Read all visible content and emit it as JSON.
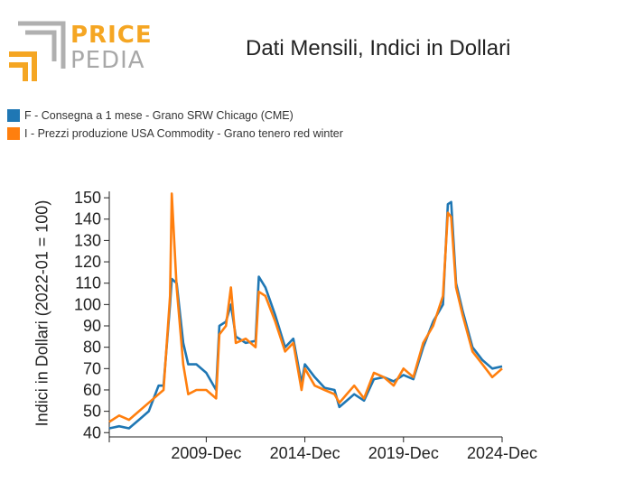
{
  "logo": {
    "word1": "PRICE",
    "word2": "PEDIA",
    "colors": {
      "orange": "#f5a623",
      "gray": "#b0b0b0"
    }
  },
  "chart_data": {
    "type": "line",
    "title": "Dati Mensili, Indici in Dollari",
    "ylabel": "Indici in Dollari (2022-01 = 100)",
    "xlabel": "",
    "ylim": [
      38,
      153
    ],
    "yticks": [
      40,
      50,
      60,
      70,
      80,
      90,
      100,
      110,
      120,
      130,
      140,
      150
    ],
    "xlim": [
      "2005-01",
      "2024-12"
    ],
    "xticks": [
      "2009-Dec",
      "2014-Dec",
      "2019-Dec",
      "2024-Dec"
    ],
    "grid": false,
    "legend_position": "top-left",
    "series": [
      {
        "name": "F - Consegna a 1 mese - Grano SRW Chicago (CME)",
        "color": "#1f77b4",
        "points": [
          [
            "2005-01",
            42
          ],
          [
            "2005-07",
            43
          ],
          [
            "2006-01",
            42
          ],
          [
            "2006-07",
            46
          ],
          [
            "2007-01",
            50
          ],
          [
            "2007-07",
            62
          ],
          [
            "2007-10",
            62
          ],
          [
            "2008-02",
            100
          ],
          [
            "2008-03",
            112
          ],
          [
            "2008-06",
            110
          ],
          [
            "2008-10",
            82
          ],
          [
            "2009-01",
            72
          ],
          [
            "2009-06",
            72
          ],
          [
            "2009-12",
            68
          ],
          [
            "2010-06",
            60
          ],
          [
            "2010-08",
            90
          ],
          [
            "2010-12",
            92
          ],
          [
            "2011-03",
            100
          ],
          [
            "2011-06",
            85
          ],
          [
            "2011-12",
            82
          ],
          [
            "2012-06",
            83
          ],
          [
            "2012-08",
            113
          ],
          [
            "2012-12",
            108
          ],
          [
            "2013-06",
            95
          ],
          [
            "2013-12",
            80
          ],
          [
            "2014-05",
            84
          ],
          [
            "2014-10",
            63
          ],
          [
            "2014-12",
            72
          ],
          [
            "2015-06",
            66
          ],
          [
            "2015-12",
            61
          ],
          [
            "2016-06",
            60
          ],
          [
            "2016-09",
            52
          ],
          [
            "2017-06",
            58
          ],
          [
            "2017-12",
            55
          ],
          [
            "2018-06",
            65
          ],
          [
            "2018-12",
            66
          ],
          [
            "2019-06",
            64
          ],
          [
            "2019-12",
            67
          ],
          [
            "2020-06",
            65
          ],
          [
            "2020-12",
            80
          ],
          [
            "2021-06",
            92
          ],
          [
            "2021-12",
            100
          ],
          [
            "2022-03",
            147
          ],
          [
            "2022-05",
            148
          ],
          [
            "2022-08",
            110
          ],
          [
            "2022-12",
            97
          ],
          [
            "2023-06",
            80
          ],
          [
            "2023-12",
            74
          ],
          [
            "2024-06",
            70
          ],
          [
            "2024-12",
            71
          ]
        ]
      },
      {
        "name": "I - Prezzi produzione USA Commodity - Grano tenero red winter",
        "color": "#ff7f0e",
        "points": [
          [
            "2005-01",
            45
          ],
          [
            "2005-07",
            48
          ],
          [
            "2006-01",
            46
          ],
          [
            "2006-07",
            50
          ],
          [
            "2007-01",
            54
          ],
          [
            "2007-07",
            58
          ],
          [
            "2007-10",
            60
          ],
          [
            "2008-02",
            104
          ],
          [
            "2008-03",
            152
          ],
          [
            "2008-06",
            108
          ],
          [
            "2008-10",
            72
          ],
          [
            "2009-01",
            58
          ],
          [
            "2009-06",
            60
          ],
          [
            "2009-12",
            60
          ],
          [
            "2010-06",
            56
          ],
          [
            "2010-08",
            86
          ],
          [
            "2010-12",
            90
          ],
          [
            "2011-03",
            108
          ],
          [
            "2011-06",
            82
          ],
          [
            "2011-12",
            84
          ],
          [
            "2012-06",
            80
          ],
          [
            "2012-08",
            106
          ],
          [
            "2012-12",
            104
          ],
          [
            "2013-06",
            92
          ],
          [
            "2013-12",
            78
          ],
          [
            "2014-05",
            82
          ],
          [
            "2014-10",
            60
          ],
          [
            "2014-12",
            70
          ],
          [
            "2015-06",
            62
          ],
          [
            "2015-12",
            60
          ],
          [
            "2016-06",
            58
          ],
          [
            "2016-09",
            54
          ],
          [
            "2017-06",
            62
          ],
          [
            "2017-12",
            56
          ],
          [
            "2018-06",
            68
          ],
          [
            "2018-12",
            66
          ],
          [
            "2019-06",
            62
          ],
          [
            "2019-12",
            70
          ],
          [
            "2020-06",
            66
          ],
          [
            "2020-12",
            82
          ],
          [
            "2021-06",
            90
          ],
          [
            "2021-12",
            104
          ],
          [
            "2022-03",
            143
          ],
          [
            "2022-05",
            141
          ],
          [
            "2022-08",
            108
          ],
          [
            "2022-12",
            95
          ],
          [
            "2023-06",
            78
          ],
          [
            "2023-12",
            72
          ],
          [
            "2024-06",
            66
          ],
          [
            "2024-12",
            70
          ]
        ]
      }
    ]
  }
}
